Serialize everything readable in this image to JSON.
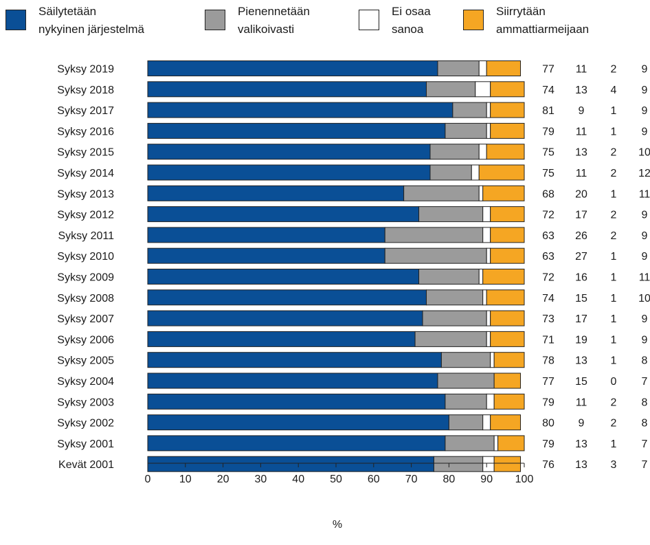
{
  "chart_data": {
    "type": "bar",
    "orientation": "horizontal",
    "stacked": true,
    "title": "",
    "xlabel": "%",
    "ylabel": "",
    "xlim": [
      0,
      100
    ],
    "xticks": [
      0,
      10,
      20,
      30,
      40,
      50,
      60,
      70,
      80,
      90,
      100
    ],
    "legend_position": "top",
    "grid": false,
    "categories": [
      "Syksy 2019",
      "Syksy 2018",
      "Syksy 2017",
      "Syksy 2016",
      "Syksy 2015",
      "Syksy 2014",
      "Syksy 2013",
      "Syksy 2012",
      "Syksy 2011",
      "Syksy 2010",
      "Syksy 2009",
      "Syksy 2008",
      "Syksy 2007",
      "Syksy 2006",
      "Syksy 2005",
      "Syksy 2004",
      "Syksy 2003",
      "Syksy 2002",
      "Syksy 2001",
      "Kevät 2001"
    ],
    "series": [
      {
        "name": "Säilytetään\nnykyinen järjestelmä",
        "color": "#0a4f96",
        "values": [
          77,
          74,
          81,
          79,
          75,
          75,
          68,
          72,
          63,
          63,
          72,
          74,
          73,
          71,
          78,
          77,
          79,
          80,
          79,
          76
        ]
      },
      {
        "name": "Pienennetään\nvalikoivasti",
        "color": "#9b9b9b",
        "values": [
          11,
          13,
          9,
          11,
          13,
          11,
          20,
          17,
          26,
          27,
          16,
          15,
          17,
          19,
          13,
          15,
          11,
          9,
          13,
          13
        ]
      },
      {
        "name": "Ei osaa\nsanoa",
        "color": "#ffffff",
        "values": [
          2,
          4,
          1,
          1,
          2,
          2,
          1,
          2,
          2,
          1,
          1,
          1,
          1,
          1,
          1,
          0,
          2,
          2,
          1,
          3
        ]
      },
      {
        "name": "Siirrytään\nammattiarmeijaan",
        "color": "#f5a623",
        "values": [
          9,
          9,
          9,
          9,
          10,
          12,
          11,
          9,
          9,
          9,
          11,
          10,
          9,
          9,
          8,
          7,
          8,
          8,
          7,
          7
        ]
      }
    ]
  }
}
